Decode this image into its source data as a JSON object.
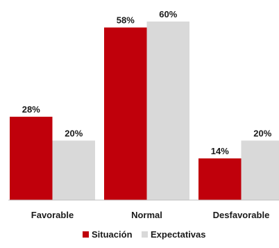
{
  "chart_data": {
    "type": "bar",
    "title": "",
    "xlabel": "",
    "ylabel": "",
    "ylim": [
      0,
      60
    ],
    "grid": false,
    "legend_position": "bottom",
    "categories": [
      "Favorable",
      "Normal",
      "Desfavorable"
    ],
    "series": [
      {
        "name": "Situación",
        "color": "#c0000b",
        "values": [
          28,
          58,
          14
        ],
        "labels": [
          "28%",
          "58%",
          "14%"
        ]
      },
      {
        "name": "Expectativas",
        "color": "#d9d9d9",
        "values": [
          20,
          60,
          20
        ],
        "labels": [
          "20%",
          "60%",
          "20%"
        ]
      }
    ]
  }
}
